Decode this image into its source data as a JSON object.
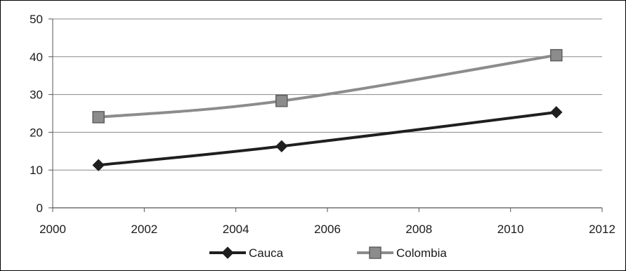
{
  "chart_data": {
    "type": "line",
    "title": "",
    "xlabel": "",
    "ylabel": "",
    "xlim": [
      2000,
      2012
    ],
    "ylim": [
      0,
      50
    ],
    "x_ticks": [
      2000,
      2002,
      2004,
      2006,
      2008,
      2010,
      2012
    ],
    "y_ticks": [
      0,
      10,
      20,
      30,
      40,
      50
    ],
    "grid": "horizontal",
    "legend_position": "bottom",
    "series": [
      {
        "name": "Cauca",
        "color": "#1f1f1f",
        "marker": "diamond",
        "x": [
          2001,
          2005,
          2011
        ],
        "y": [
          11.3,
          16.3,
          25.3
        ]
      },
      {
        "name": "Colombia",
        "color": "#8c8c8c",
        "marker": "square",
        "x": [
          2001,
          2005,
          2011
        ],
        "y": [
          24.0,
          28.3,
          40.4
        ]
      }
    ]
  }
}
